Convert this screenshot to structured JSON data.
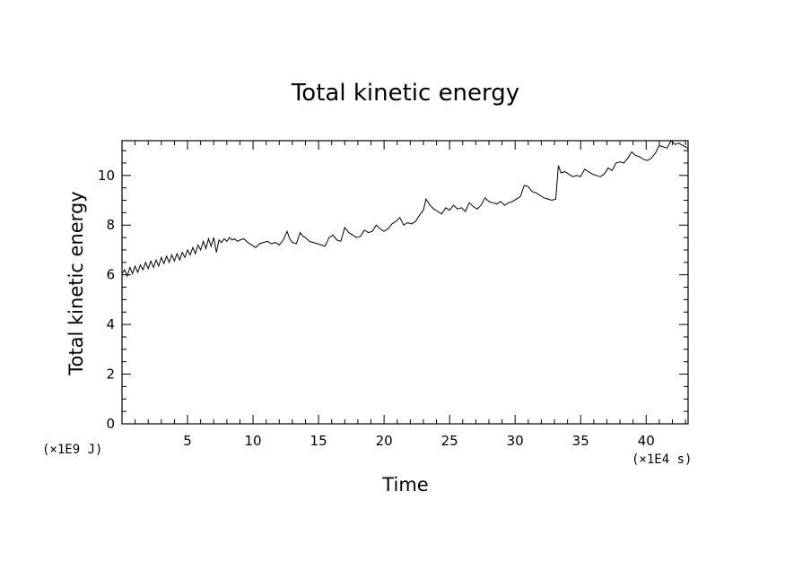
{
  "chart_data": {
    "type": "line",
    "title": "Total kinetic energy",
    "xlabel": "Time",
    "ylabel": "Total kinetic energy",
    "x_unit": "(×1E4 s)",
    "y_unit": "(×1E9 J)",
    "xlim": [
      0,
      43.2
    ],
    "ylim": [
      0,
      11.4
    ],
    "x_ticks": [
      5,
      10,
      15,
      20,
      25,
      30,
      35,
      40
    ],
    "y_ticks": [
      0,
      2,
      4,
      6,
      8,
      10
    ],
    "grid": false,
    "legend": "none",
    "line_color": "#000000",
    "series": [
      {
        "x": [
          0.0,
          0.2,
          0.4,
          0.6,
          0.8,
          1.0,
          1.2,
          1.4,
          1.6,
          1.8,
          2.0,
          2.2,
          2.4,
          2.6,
          2.8,
          3.0,
          3.2,
          3.4,
          3.6,
          3.8,
          4.0,
          4.2,
          4.4,
          4.6,
          4.8,
          5.0,
          5.2,
          5.4,
          5.6,
          5.8,
          6.0,
          6.2,
          6.4,
          6.6,
          6.8,
          7.0,
          7.2,
          7.4,
          7.6,
          7.8,
          8.0,
          8.2,
          8.4,
          8.6,
          8.8,
          9.0,
          9.3,
          9.6,
          9.9,
          10.2,
          10.5,
          10.8,
          11.1,
          11.4,
          11.7,
          12.0,
          12.3,
          12.6,
          12.8,
          13.0,
          13.3,
          13.6,
          13.8,
          14.0,
          14.3,
          14.6,
          14.9,
          15.2,
          15.5,
          15.8,
          16.1,
          16.4,
          16.7,
          17.0,
          17.3,
          17.6,
          17.9,
          18.2,
          18.5,
          18.8,
          19.1,
          19.4,
          19.7,
          20.0,
          20.3,
          20.6,
          20.9,
          21.2,
          21.5,
          21.8,
          22.1,
          22.4,
          22.7,
          23.0,
          23.2,
          23.5,
          23.8,
          24.1,
          24.4,
          24.7,
          25.0,
          25.3,
          25.6,
          25.9,
          26.2,
          26.5,
          26.8,
          27.1,
          27.4,
          27.7,
          28.0,
          28.3,
          28.6,
          28.9,
          29.2,
          29.5,
          29.8,
          30.1,
          30.4,
          30.7,
          31.0,
          31.3,
          31.6,
          31.9,
          32.2,
          32.5,
          32.8,
          33.1,
          33.3,
          33.5,
          33.8,
          34.1,
          34.4,
          34.7,
          35.0,
          35.3,
          35.6,
          35.9,
          36.2,
          36.5,
          36.8,
          37.1,
          37.4,
          37.7,
          38.0,
          38.3,
          38.6,
          38.9,
          39.2,
          39.5,
          39.8,
          40.1,
          40.4,
          40.7,
          41.0,
          41.3,
          41.6,
          41.9,
          42.2,
          42.5,
          42.8,
          43.2
        ],
        "y": [
          6.05,
          6.2,
          5.95,
          6.3,
          6.05,
          6.35,
          6.1,
          6.4,
          6.2,
          6.5,
          6.25,
          6.55,
          6.3,
          6.6,
          6.35,
          6.7,
          6.45,
          6.75,
          6.5,
          6.8,
          6.55,
          6.85,
          6.6,
          6.9,
          6.7,
          7.0,
          6.8,
          7.1,
          6.85,
          7.2,
          7.0,
          7.35,
          7.05,
          7.45,
          7.15,
          7.5,
          6.9,
          7.4,
          7.3,
          7.45,
          7.35,
          7.5,
          7.4,
          7.45,
          7.35,
          7.4,
          7.45,
          7.3,
          7.2,
          7.1,
          7.25,
          7.3,
          7.35,
          7.25,
          7.3,
          7.2,
          7.4,
          7.75,
          7.45,
          7.3,
          7.25,
          7.7,
          7.55,
          7.5,
          7.35,
          7.3,
          7.25,
          7.2,
          7.15,
          7.5,
          7.6,
          7.4,
          7.35,
          7.9,
          7.7,
          7.6,
          7.5,
          7.55,
          7.8,
          7.7,
          7.75,
          8.0,
          7.85,
          7.75,
          7.85,
          8.05,
          8.15,
          8.3,
          8.0,
          8.1,
          8.05,
          8.15,
          8.4,
          8.6,
          9.05,
          8.8,
          8.65,
          8.55,
          8.45,
          8.7,
          8.6,
          8.8,
          8.65,
          8.7,
          8.55,
          8.9,
          8.75,
          8.65,
          8.8,
          9.1,
          8.95,
          8.9,
          8.85,
          8.95,
          8.8,
          8.9,
          8.95,
          9.05,
          9.15,
          9.6,
          9.55,
          9.35,
          9.3,
          9.2,
          9.1,
          9.05,
          9.0,
          9.05,
          10.4,
          10.1,
          10.15,
          10.05,
          9.95,
          10.0,
          9.95,
          10.25,
          10.15,
          10.05,
          10.0,
          9.95,
          10.05,
          10.3,
          10.2,
          10.5,
          10.55,
          10.5,
          10.7,
          10.95,
          10.8,
          10.75,
          10.65,
          10.6,
          10.7,
          10.9,
          11.2,
          11.15,
          11.1,
          11.4,
          11.25,
          11.3,
          11.2,
          11.1
        ]
      }
    ]
  }
}
